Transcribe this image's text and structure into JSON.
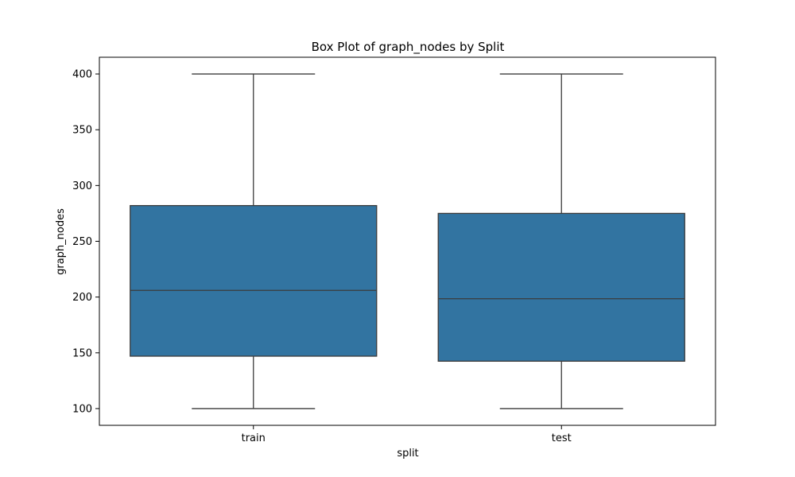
{
  "chart_data": {
    "type": "box",
    "title": "Box Plot of graph_nodes by Split",
    "xlabel": "split",
    "ylabel": "graph_nodes",
    "categories": [
      "train",
      "test"
    ],
    "boxes": [
      {
        "category": "train",
        "min": 100,
        "q1": 147,
        "median": 206,
        "q3": 282,
        "max": 400
      },
      {
        "category": "test",
        "min": 100,
        "q1": 142.5,
        "median": 198.5,
        "q3": 275,
        "max": 400
      }
    ],
    "ylim": [
      85,
      415
    ],
    "yticks": [
      100,
      150,
      200,
      250,
      300,
      350,
      400
    ],
    "grid": false,
    "box_color": "#3274a1",
    "line_color": "#3b3b3b"
  }
}
